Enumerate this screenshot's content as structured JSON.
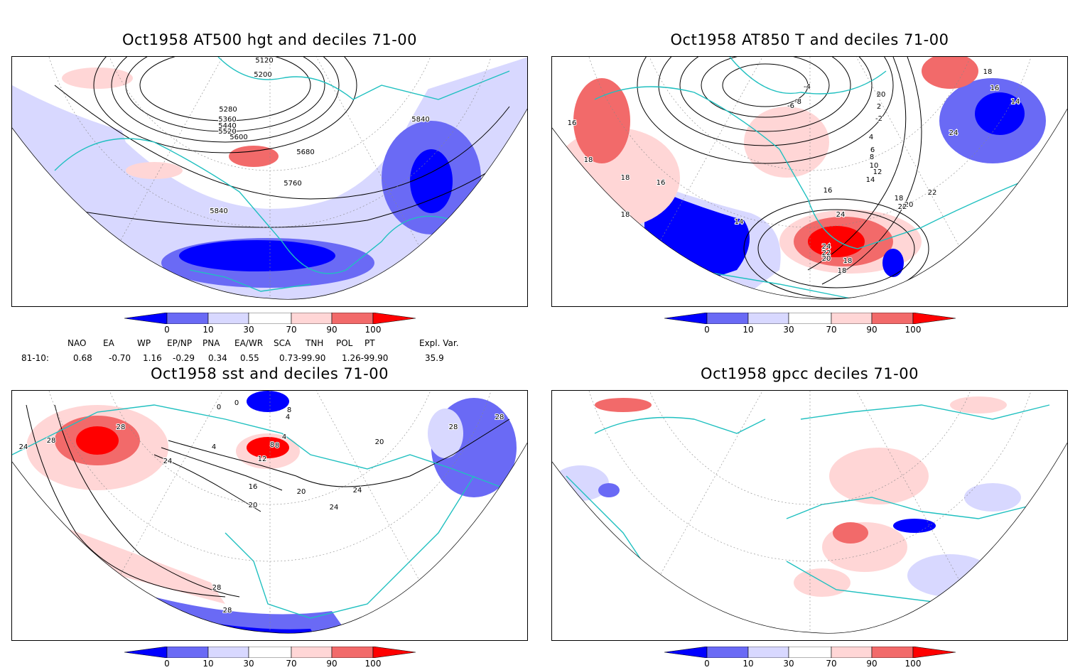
{
  "panels": [
    {
      "title": "Oct1958 AT500 hgt and deciles 71-00",
      "contour_labels": [
        "5120",
        "5200",
        "5280",
        "5360",
        "5440",
        "5520",
        "5600",
        "5680",
        "5760",
        "5840",
        "5840"
      ]
    },
    {
      "title": "Oct1958 AT850 T and deciles 71-00",
      "contour_labels": [
        "16",
        "18",
        "18",
        "18",
        "16",
        "14",
        "14",
        "12",
        "10",
        "8",
        "6",
        "4",
        "2",
        "0",
        "-2",
        "-4",
        "-6",
        "-8",
        "16",
        "18",
        "20",
        "22",
        "24",
        "24",
        "22",
        "20",
        "18",
        "18",
        "20",
        "22",
        "24",
        "14",
        "16",
        "18"
      ]
    },
    {
      "title": "Oct1958 sst and deciles 71-00",
      "contour_labels": [
        "28",
        "24",
        "28",
        "24",
        "0",
        "0",
        "4",
        "8",
        "4",
        "8",
        "12",
        "16",
        "20",
        "20",
        "24",
        "24",
        "28",
        "28",
        "28",
        "28",
        "20",
        "8",
        "4"
      ]
    },
    {
      "title": "Oct1958 gpcc deciles 71-00",
      "contour_labels": []
    }
  ],
  "colorbar": {
    "ticks": [
      "0",
      "10",
      "30",
      "70",
      "90",
      "100"
    ],
    "colors": [
      "#0000ff",
      "#6a6af5",
      "#d8d8ff",
      "#ffffff",
      "#ffd6d6",
      "#f26a6a",
      "#ff0000"
    ]
  },
  "indices": {
    "row_label": "81-10:",
    "columns": [
      {
        "name": "NAO",
        "value": "0.68"
      },
      {
        "name": "EA",
        "value": "-0.70"
      },
      {
        "name": "WP",
        "value": "1.16"
      },
      {
        "name": "EP/NP",
        "value": "-0.29"
      },
      {
        "name": "PNA",
        "value": "0.34"
      },
      {
        "name": "EA/WR",
        "value": "0.55"
      },
      {
        "name": "SCA",
        "value": "0.73-99.90"
      },
      {
        "name": "TNH",
        "value": ""
      },
      {
        "name": "POL",
        "value": "1.26-99.90"
      },
      {
        "name": "PT",
        "value": ""
      },
      {
        "name": "Expl. Var.",
        "value": "35.9"
      }
    ]
  },
  "map_colors": {
    "coast": "#20c0c0",
    "contour": "#000000",
    "grid": "#888888"
  }
}
